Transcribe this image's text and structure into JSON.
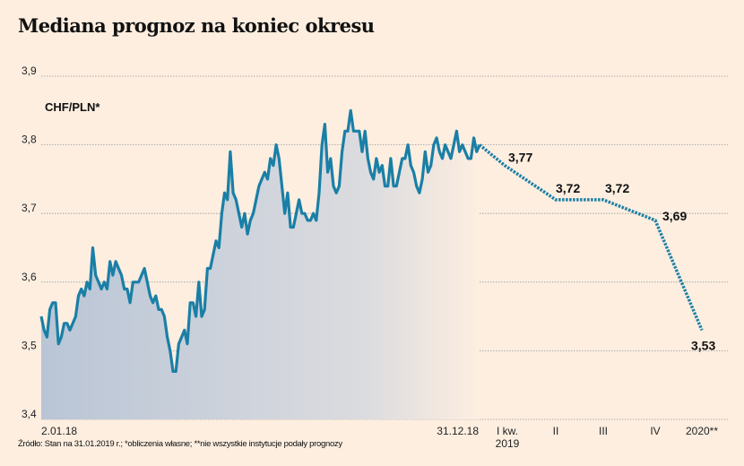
{
  "title": "Mediana prognoz na koniec okresu",
  "source": "Źródło: Stan na 31.01.2019 r.; *obliczenia własne; **nie wszystkie instytucje podały prognozy",
  "chart_data": {
    "type": "line",
    "title": "Mediana prognoz na koniec okresu",
    "series_label": "CHF/PLN*",
    "ylim": [
      3.4,
      3.9
    ],
    "yticks": [
      3.4,
      3.5,
      3.6,
      3.7,
      3.8,
      3.9
    ],
    "ytick_labels": [
      "3,4",
      "3,5",
      "3,6",
      "3,7",
      "3,8",
      "3,9"
    ],
    "grid": true,
    "history": {
      "name": "CHF/PLN",
      "start_label": "2.01.18",
      "end_label": "31.12.18",
      "values": [
        3.55,
        3.53,
        3.52,
        3.56,
        3.57,
        3.57,
        3.51,
        3.52,
        3.54,
        3.54,
        3.53,
        3.54,
        3.55,
        3.58,
        3.59,
        3.58,
        3.6,
        3.59,
        3.65,
        3.61,
        3.6,
        3.59,
        3.6,
        3.59,
        3.63,
        3.61,
        3.63,
        3.62,
        3.61,
        3.59,
        3.59,
        3.57,
        3.6,
        3.6,
        3.6,
        3.61,
        3.62,
        3.6,
        3.58,
        3.57,
        3.58,
        3.56,
        3.56,
        3.55,
        3.52,
        3.5,
        3.47,
        3.47,
        3.51,
        3.52,
        3.53,
        3.51,
        3.57,
        3.57,
        3.55,
        3.6,
        3.55,
        3.56,
        3.62,
        3.62,
        3.64,
        3.66,
        3.65,
        3.7,
        3.73,
        3.72,
        3.79,
        3.73,
        3.72,
        3.7,
        3.68,
        3.7,
        3.67,
        3.69,
        3.7,
        3.72,
        3.74,
        3.75,
        3.76,
        3.75,
        3.78,
        3.77,
        3.8,
        3.78,
        3.74,
        3.7,
        3.73,
        3.68,
        3.68,
        3.7,
        3.72,
        3.7,
        3.7,
        3.69,
        3.69,
        3.7,
        3.69,
        3.73,
        3.8,
        3.83,
        3.76,
        3.78,
        3.74,
        3.73,
        3.74,
        3.79,
        3.82,
        3.82,
        3.85,
        3.82,
        3.82,
        3.82,
        3.79,
        3.82,
        3.78,
        3.76,
        3.75,
        3.78,
        3.76,
        3.77,
        3.74,
        3.74,
        3.78,
        3.74,
        3.74,
        3.76,
        3.78,
        3.78,
        3.8,
        3.77,
        3.76,
        3.74,
        3.73,
        3.75,
        3.79,
        3.76,
        3.77,
        3.8,
        3.81,
        3.79,
        3.78,
        3.8,
        3.79,
        3.78,
        3.8,
        3.82,
        3.79,
        3.8,
        3.79,
        3.78,
        3.78,
        3.81,
        3.79,
        3.8
      ]
    },
    "forecast": {
      "name": "Mediana prognoz",
      "categories": [
        "I kw. 2019",
        "II",
        "III",
        "IV",
        "2020**"
      ],
      "category_lines": [
        [
          "I kw.",
          "2019"
        ],
        [
          "II"
        ],
        [
          "III"
        ],
        [
          "IV"
        ],
        [
          "2020**"
        ]
      ],
      "values": [
        3.77,
        3.72,
        3.72,
        3.69,
        3.53
      ],
      "value_labels": [
        "3,77",
        "3,72",
        "3,72",
        "3,69",
        "3,53"
      ]
    },
    "colors": {
      "line": "#1a7fa6",
      "area_start": "#b9c5d6",
      "area_end": "#fdeee0",
      "background": "#fdeee0"
    }
  }
}
